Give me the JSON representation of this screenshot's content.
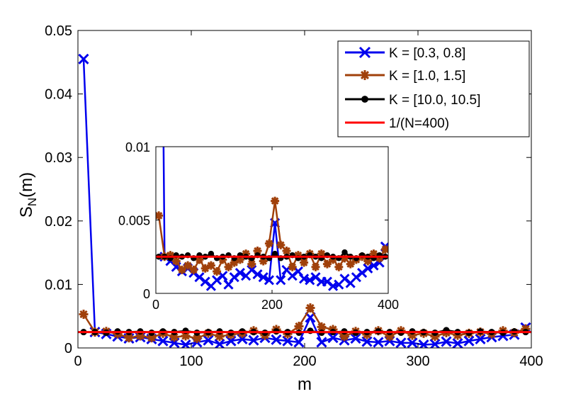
{
  "chart_data": {
    "type": "line",
    "xlabel": "m",
    "ylabel_main": "S",
    "ylabel_sub": "N",
    "ylabel_tail": "(m)",
    "xlim": [
      0,
      400
    ],
    "ylim": [
      0,
      0.05
    ],
    "x_ticks": [
      "0",
      "100",
      "200",
      "300",
      "400"
    ],
    "y_ticks": [
      "0",
      "0.01",
      "0.02",
      "0.03",
      "0.04",
      "0.05"
    ],
    "legend_position": "top-right",
    "x": [
      5,
      15,
      25,
      35,
      45,
      55,
      65,
      75,
      85,
      95,
      105,
      115,
      125,
      135,
      145,
      155,
      165,
      175,
      185,
      195,
      205,
      215,
      225,
      235,
      245,
      255,
      265,
      275,
      285,
      295,
      305,
      315,
      325,
      335,
      345,
      355,
      365,
      375,
      385,
      395
    ],
    "series": [
      {
        "name": "K = [0.3, 0.8]",
        "color": "#0000ee",
        "marker": "x",
        "values": [
          0.0455,
          0.0025,
          0.0022,
          0.0018,
          0.0015,
          0.0017,
          0.0014,
          0.0011,
          0.0008,
          0.0005,
          0.0009,
          0.0012,
          0.0006,
          0.0011,
          0.0014,
          0.0012,
          0.0016,
          0.0013,
          0.0011,
          0.0009,
          0.0048,
          0.0009,
          0.0016,
          0.0012,
          0.0015,
          0.001,
          0.0009,
          0.0011,
          0.0008,
          0.0008,
          0.0005,
          0.0006,
          0.001,
          0.0007,
          0.0011,
          0.0014,
          0.0017,
          0.0019,
          0.0021,
          0.0032
        ]
      },
      {
        "name": "K = [1.0, 1.5]",
        "color": "#a0400a",
        "marker": "star",
        "values": [
          0.0053,
          0.0025,
          0.0026,
          0.0022,
          0.0016,
          0.0019,
          0.0016,
          0.0023,
          0.0017,
          0.0019,
          0.0015,
          0.0023,
          0.0018,
          0.0021,
          0.0023,
          0.0027,
          0.002,
          0.0029,
          0.0022,
          0.0034,
          0.0063,
          0.0033,
          0.0029,
          0.0018,
          0.0026,
          0.0021,
          0.0027,
          0.0018,
          0.0027,
          0.002,
          0.0023,
          0.0018,
          0.0024,
          0.002,
          0.0023,
          0.0025,
          0.0022,
          0.0027,
          0.0024,
          0.003
        ]
      },
      {
        "name": "K = [10.0, 10.5]",
        "color": "#000000",
        "marker": "dot",
        "values": [
          0.0025,
          0.0025,
          0.0024,
          0.0026,
          0.0025,
          0.0026,
          0.0024,
          0.0026,
          0.0025,
          0.0027,
          0.0024,
          0.0025,
          0.0026,
          0.0024,
          0.0026,
          0.0025,
          0.0024,
          0.0026,
          0.0025,
          0.0024,
          0.0027,
          0.0024,
          0.0025,
          0.0026,
          0.0024,
          0.0025,
          0.0026,
          0.0025,
          0.0024,
          0.0026,
          0.0025,
          0.0024,
          0.0028,
          0.0025,
          0.0024,
          0.0026,
          0.0025,
          0.0024,
          0.0026,
          0.0025
        ]
      },
      {
        "name": "1/(N=400)",
        "color": "#ff0000",
        "marker": "none",
        "constant": 0.0025
      }
    ],
    "inset": {
      "xlim": [
        0,
        400
      ],
      "ylim": [
        0,
        0.01
      ],
      "x_ticks": [
        "0",
        "200",
        "400"
      ],
      "y_ticks": [
        "0",
        "0.005",
        "0.01"
      ]
    }
  }
}
